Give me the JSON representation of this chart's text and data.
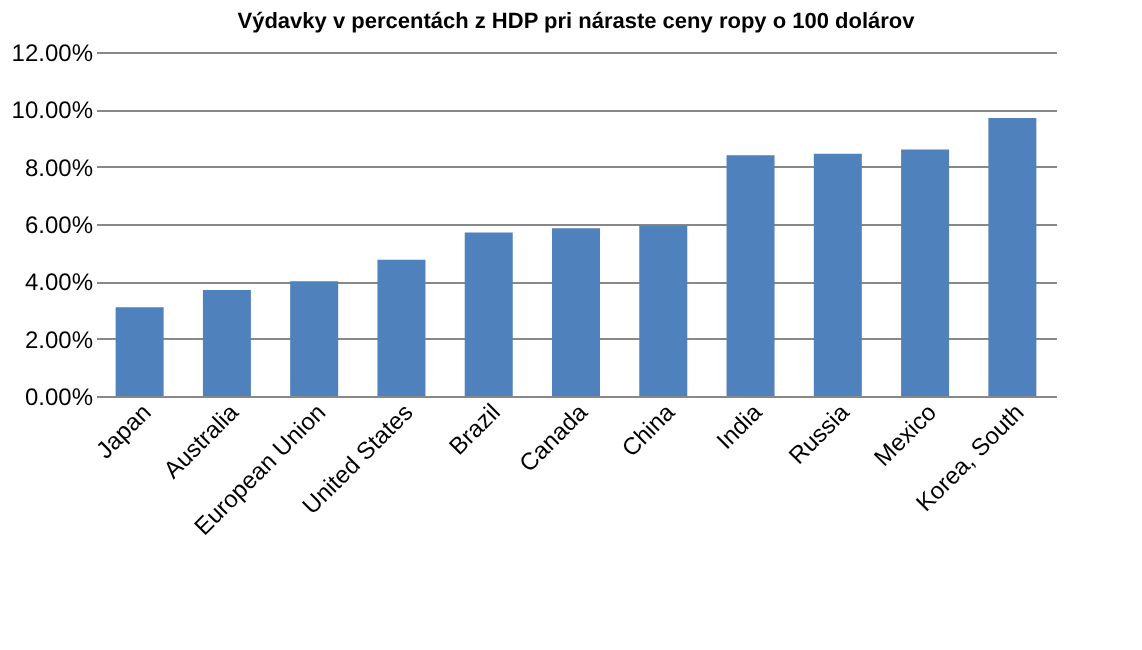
{
  "chart_data": {
    "type": "bar",
    "title": "Výdavky v percentách z HDP pri náraste ceny ropy o 100 dolárov",
    "categories": [
      "Japan",
      "Australia",
      "European Union",
      "United States",
      "Brazil",
      "Canada",
      "China",
      "India",
      "Russia",
      "Mexico",
      "Korea, South"
    ],
    "values": [
      3.1,
      3.7,
      4.0,
      4.75,
      5.7,
      5.85,
      5.95,
      8.4,
      8.45,
      8.6,
      9.7
    ],
    "color": "#4f81bd",
    "ylim": [
      0,
      12
    ],
    "yticks": [
      {
        "value": 0,
        "label": "0.00%"
      },
      {
        "value": 2,
        "label": "2.00%"
      },
      {
        "value": 4,
        "label": "4.00%"
      },
      {
        "value": 6,
        "label": "6.00%"
      },
      {
        "value": 8,
        "label": "8.00%"
      },
      {
        "value": 10,
        "label": "10.00%"
      },
      {
        "value": 12,
        "label": "12.00%"
      }
    ],
    "grid": "y"
  }
}
